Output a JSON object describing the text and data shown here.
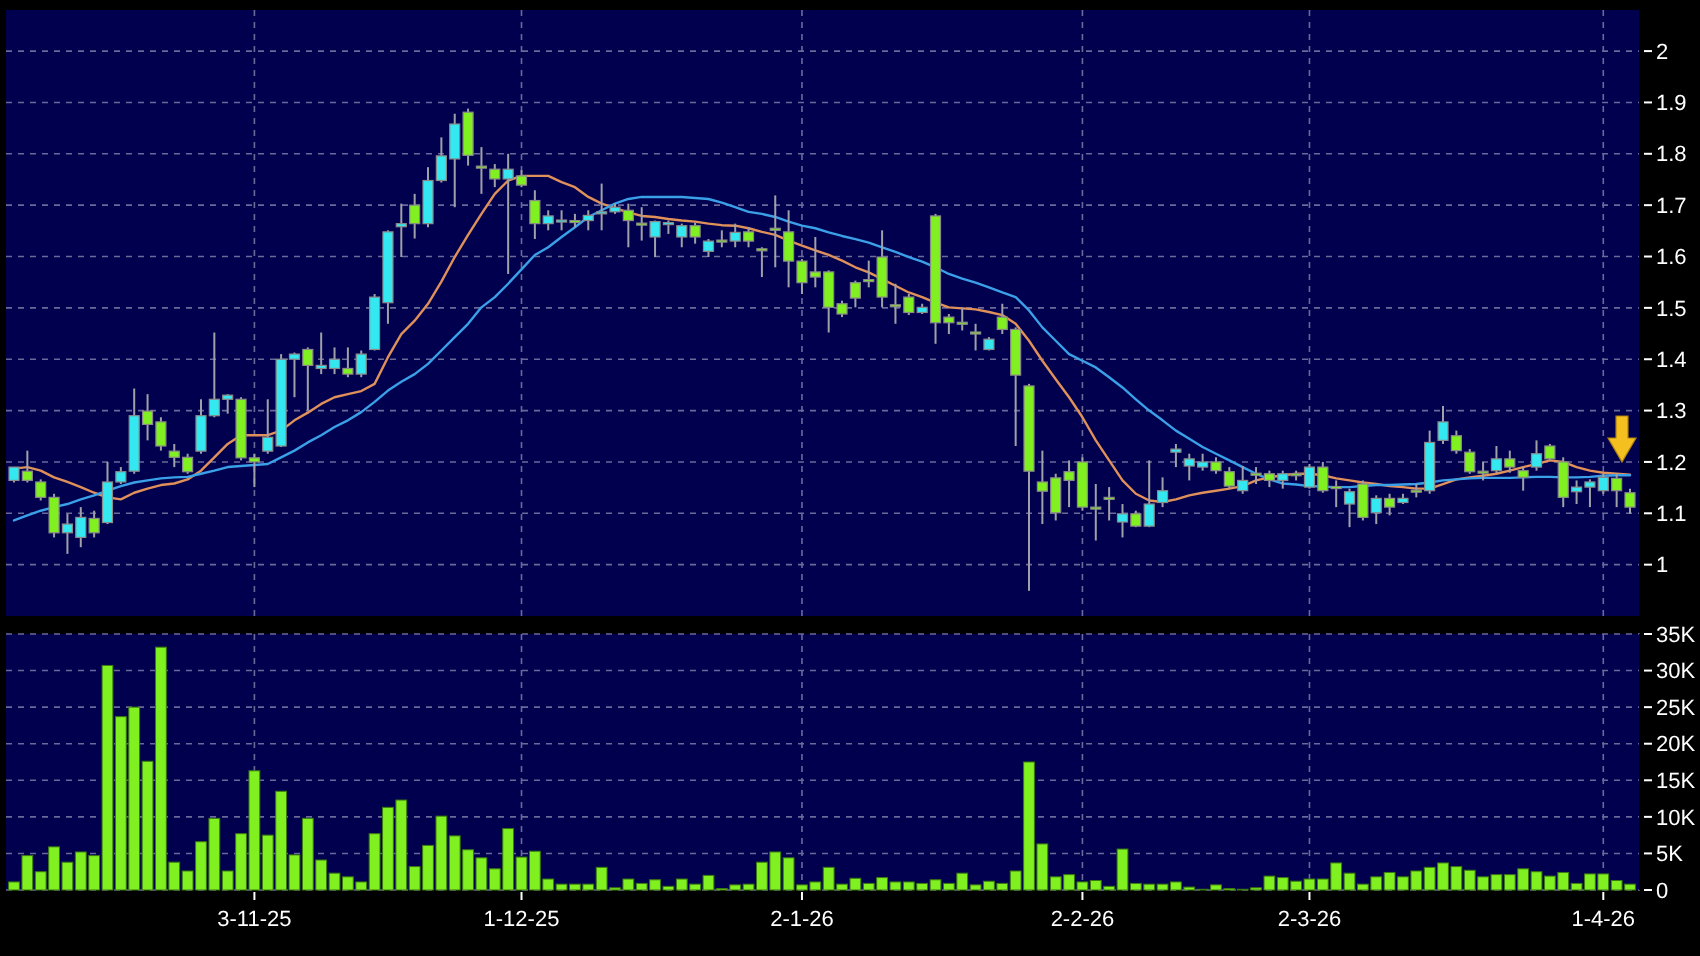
{
  "chart_data": [
    {
      "type": "candlestick",
      "categories": [
        null,
        null,
        null,
        null,
        null,
        null,
        null,
        null,
        null,
        null,
        null,
        null,
        null,
        null,
        null,
        null,
        null,
        null,
        null,
        null,
        null,
        null,
        null,
        null,
        null,
        null,
        null,
        null,
        null,
        null,
        null,
        null,
        null,
        null,
        null,
        null,
        null,
        null,
        null,
        null,
        null,
        null,
        null,
        null,
        null,
        null,
        null,
        null,
        null,
        null,
        null,
        null,
        null,
        null,
        null,
        null,
        null,
        null,
        null,
        null,
        null,
        null,
        null,
        null,
        null,
        null,
        null,
        null,
        null,
        null,
        null,
        null,
        null,
        null,
        null,
        null,
        null,
        null,
        null,
        null,
        null,
        null,
        null,
        null,
        null,
        null,
        null,
        null,
        null,
        null,
        null,
        null,
        null,
        null,
        null,
        null,
        null,
        null,
        null,
        null,
        null,
        null,
        null,
        null,
        null,
        null,
        null,
        null,
        null,
        null,
        null,
        null,
        null,
        null,
        null,
        null,
        null,
        null,
        null,
        null,
        null,
        null
      ],
      "ohlc": [
        [
          1.164,
          1.19,
          1.16,
          1.19
        ],
        [
          1.182,
          1.222,
          1.16,
          1.164
        ],
        [
          1.161,
          1.166,
          1.125,
          1.131
        ],
        [
          1.131,
          1.138,
          1.053,
          1.062
        ],
        [
          1.062,
          1.099,
          1.021,
          1.079
        ],
        [
          1.053,
          1.112,
          1.034,
          1.092
        ],
        [
          1.09,
          1.105,
          1.053,
          1.062
        ],
        [
          1.082,
          1.2,
          1.079,
          1.161
        ],
        [
          1.161,
          1.19,
          1.157,
          1.181
        ],
        [
          1.182,
          1.343,
          1.177,
          1.29
        ],
        [
          1.299,
          1.332,
          1.242,
          1.273
        ],
        [
          1.278,
          1.287,
          1.222,
          1.231
        ],
        [
          1.221,
          1.235,
          1.19,
          1.209
        ],
        [
          1.209,
          1.216,
          1.177,
          1.181
        ],
        [
          1.221,
          1.322,
          1.216,
          1.29
        ],
        [
          1.29,
          1.452,
          1.287,
          1.322
        ],
        [
          1.322,
          1.332,
          1.294,
          1.33
        ],
        [
          1.322,
          1.326,
          1.203,
          1.208
        ],
        [
          1.208,
          1.216,
          1.151,
          1.2
        ],
        [
          1.221,
          1.322,
          1.216,
          1.248
        ],
        [
          1.231,
          1.41,
          1.229,
          1.4
        ],
        [
          1.4,
          1.413,
          1.326,
          1.41
        ],
        [
          1.419,
          1.423,
          1.3,
          1.388
        ],
        [
          1.382,
          1.452,
          1.371,
          1.388
        ],
        [
          1.382,
          1.423,
          1.371,
          1.4
        ],
        [
          1.382,
          1.423,
          1.365,
          1.371
        ],
        [
          1.371,
          1.417,
          1.365,
          1.41
        ],
        [
          1.419,
          1.527,
          1.417,
          1.521
        ],
        [
          1.51,
          1.651,
          1.469,
          1.648
        ],
        [
          1.658,
          1.703,
          1.599,
          1.664
        ],
        [
          1.7,
          1.722,
          1.635,
          1.664
        ],
        [
          1.664,
          1.774,
          1.657,
          1.748
        ],
        [
          1.748,
          1.832,
          1.744,
          1.796
        ],
        [
          1.79,
          1.878,
          1.696,
          1.858
        ],
        [
          1.881,
          1.888,
          1.777,
          1.797
        ],
        [
          1.776,
          1.813,
          1.722,
          1.774
        ],
        [
          1.77,
          1.78,
          1.735,
          1.751
        ],
        [
          1.751,
          1.8,
          1.566,
          1.77
        ],
        [
          1.757,
          1.768,
          1.735,
          1.739
        ],
        [
          1.709,
          1.729,
          1.634,
          1.664
        ],
        [
          1.664,
          1.69,
          1.651,
          1.679
        ],
        [
          1.67,
          1.69,
          1.651,
          1.671
        ],
        [
          1.67,
          1.683,
          1.657,
          1.668
        ],
        [
          1.67,
          1.69,
          1.651,
          1.68
        ],
        [
          1.683,
          1.742,
          1.651,
          1.687
        ],
        [
          1.687,
          1.703,
          1.683,
          1.696
        ],
        [
          1.69,
          1.703,
          1.618,
          1.67
        ],
        [
          1.665,
          1.696,
          1.631,
          1.664
        ],
        [
          1.638,
          1.67,
          1.599,
          1.668
        ],
        [
          1.665,
          1.67,
          1.644,
          1.666
        ],
        [
          1.638,
          1.664,
          1.618,
          1.66
        ],
        [
          1.66,
          1.666,
          1.625,
          1.638
        ],
        [
          1.61,
          1.634,
          1.599,
          1.63
        ],
        [
          1.632,
          1.651,
          1.618,
          1.631
        ],
        [
          1.63,
          1.664,
          1.618,
          1.647
        ],
        [
          1.648,
          1.657,
          1.618,
          1.63
        ],
        [
          1.615,
          1.618,
          1.56,
          1.614
        ],
        [
          1.655,
          1.719,
          1.579,
          1.653
        ],
        [
          1.648,
          1.69,
          1.54,
          1.591
        ],
        [
          1.591,
          1.595,
          1.527,
          1.549
        ],
        [
          1.57,
          1.638,
          1.54,
          1.56
        ],
        [
          1.57,
          1.573,
          1.452,
          1.501
        ],
        [
          1.508,
          1.514,
          1.482,
          1.488
        ],
        [
          1.549,
          1.553,
          1.501,
          1.519
        ],
        [
          1.555,
          1.592,
          1.54,
          1.553
        ],
        [
          1.599,
          1.651,
          1.501,
          1.521
        ],
        [
          1.506,
          1.547,
          1.469,
          1.505
        ],
        [
          1.521,
          1.527,
          1.486,
          1.491
        ],
        [
          1.491,
          1.508,
          1.488,
          1.501
        ],
        [
          1.679,
          1.683,
          1.43,
          1.471
        ],
        [
          1.482,
          1.488,
          1.449,
          1.471
        ],
        [
          1.472,
          1.501,
          1.456,
          1.471
        ],
        [
          1.453,
          1.469,
          1.417,
          1.452
        ],
        [
          1.419,
          1.443,
          1.417,
          1.439
        ],
        [
          1.482,
          1.508,
          1.449,
          1.458
        ],
        [
          1.458,
          1.462,
          1.231,
          1.369
        ],
        [
          1.348,
          1.352,
          0.949,
          1.182
        ],
        [
          1.161,
          1.222,
          1.079,
          1.143
        ],
        [
          1.169,
          1.177,
          1.086,
          1.101
        ],
        [
          1.181,
          1.203,
          1.112,
          1.164
        ],
        [
          1.2,
          1.209,
          1.105,
          1.112
        ],
        [
          1.112,
          1.157,
          1.047,
          1.11
        ],
        [
          1.131,
          1.151,
          1.086,
          1.13
        ],
        [
          1.083,
          1.118,
          1.053,
          1.099
        ],
        [
          1.099,
          1.105,
          1.073,
          1.075
        ],
        [
          1.075,
          1.203,
          1.073,
          1.118
        ],
        [
          1.121,
          1.17,
          1.112,
          1.144
        ],
        [
          1.219,
          1.235,
          1.19,
          1.225
        ],
        [
          1.192,
          1.216,
          1.164,
          1.206
        ],
        [
          1.19,
          1.216,
          1.183,
          1.2
        ],
        [
          1.2,
          1.209,
          1.177,
          1.183
        ],
        [
          1.181,
          1.19,
          1.148,
          1.153
        ],
        [
          1.144,
          1.192,
          1.138,
          1.164
        ],
        [
          1.178,
          1.19,
          1.157,
          1.177
        ],
        [
          1.177,
          1.183,
          1.151,
          1.164
        ],
        [
          1.164,
          1.183,
          1.148,
          1.177
        ],
        [
          1.177,
          1.183,
          1.164,
          1.176
        ],
        [
          1.151,
          1.196,
          1.148,
          1.19
        ],
        [
          1.19,
          1.2,
          1.14,
          1.144
        ],
        [
          1.152,
          1.164,
          1.112,
          1.151
        ],
        [
          1.118,
          1.148,
          1.073,
          1.142
        ],
        [
          1.157,
          1.164,
          1.086,
          1.092
        ],
        [
          1.101,
          1.135,
          1.079,
          1.129
        ],
        [
          1.129,
          1.138,
          1.096,
          1.112
        ],
        [
          1.121,
          1.138,
          1.118,
          1.129
        ],
        [
          1.145,
          1.157,
          1.131,
          1.144
        ],
        [
          1.144,
          1.261,
          1.138,
          1.238
        ],
        [
          1.242,
          1.309,
          1.235,
          1.278
        ],
        [
          1.251,
          1.261,
          1.216,
          1.222
        ],
        [
          1.219,
          1.225,
          1.177,
          1.181
        ],
        [
          1.182,
          1.2,
          1.164,
          1.181
        ],
        [
          1.183,
          1.231,
          1.177,
          1.206
        ],
        [
          1.206,
          1.222,
          1.179,
          1.19
        ],
        [
          1.183,
          1.19,
          1.144,
          1.17
        ],
        [
          1.19,
          1.242,
          1.183,
          1.216
        ],
        [
          1.231,
          1.235,
          1.203,
          1.206
        ],
        [
          1.2,
          1.209,
          1.112,
          1.131
        ],
        [
          1.142,
          1.164,
          1.118,
          1.151
        ],
        [
          1.151,
          1.166,
          1.112,
          1.161
        ],
        [
          1.144,
          1.177,
          1.138,
          1.17
        ],
        [
          1.168,
          1.177,
          1.112,
          1.144
        ],
        [
          1.14,
          1.148,
          1.099,
          1.112
        ]
      ],
      "colors": [
        "#33e8f0",
        "#80f020",
        "#80f020",
        "#80f020",
        "#33e8f0",
        "#33e8f0",
        "#80f020",
        "#33e8f0",
        "#33e8f0",
        "#33e8f0",
        "#80f020",
        "#80f020",
        "#80f020",
        "#80f020",
        "#33e8f0",
        "#33e8f0",
        "#33e8f0",
        "#80f020",
        "#80f020",
        "#33e8f0",
        "#33e8f0",
        "#33e8f0",
        "#80f020",
        "#33e8f0",
        "#33e8f0",
        "#80f020",
        "#33e8f0",
        "#33e8f0",
        "#33e8f0",
        "#33e8f0",
        "#80f020",
        "#33e8f0",
        "#33e8f0",
        "#33e8f0",
        "#80f020",
        "#80f020",
        "#80f020",
        "#33e8f0",
        "#80f020",
        "#80f020",
        "#33e8f0",
        "#33e8f0",
        "#80f020",
        "#33e8f0",
        "#33e8f0",
        "#33e8f0",
        "#80f020",
        "#80f020",
        "#33e8f0",
        "#33e8f0",
        "#33e8f0",
        "#80f020",
        "#33e8f0",
        "#80f020",
        "#33e8f0",
        "#80f020",
        "#80f020",
        "#80f020",
        "#80f020",
        "#80f020",
        "#80f020",
        "#80f020",
        "#80f020",
        "#80f020",
        "#80f020",
        "#80f020",
        "#80f020",
        "#80f020",
        "#33e8f0",
        "#80f020",
        "#80f020",
        "#80f020",
        "#80f020",
        "#33e8f0",
        "#80f020",
        "#80f020",
        "#80f020",
        "#80f020",
        "#80f020",
        "#80f020",
        "#80f020",
        "#80f020",
        "#80f020",
        "#33e8f0",
        "#80f020",
        "#33e8f0",
        "#33e8f0",
        "#33e8f0",
        "#33e8f0",
        "#33e8f0",
        "#80f020",
        "#80f020",
        "#33e8f0",
        "#80f020",
        "#80f020",
        "#33e8f0",
        "#80f020",
        "#33e8f0",
        "#80f020",
        "#80f020",
        "#33e8f0",
        "#80f020",
        "#33e8f0",
        "#80f020",
        "#33e8f0",
        "#80f020",
        "#33e8f0",
        "#33e8f0",
        "#80f020",
        "#80f020",
        "#80f020",
        "#33e8f0",
        "#80f020",
        "#80f020",
        "#33e8f0",
        "#80f020",
        "#80f020",
        "#33e8f0",
        "#33e8f0",
        "#33e8f0",
        "#80f020",
        "#80f020"
      ],
      "series": [
        {
          "type": "line",
          "color": "#e0905a",
          "values": [
            1.187,
            1.19,
            1.183,
            1.17,
            1.161,
            1.151,
            1.14,
            1.131,
            1.127,
            1.14,
            1.148,
            1.155,
            1.158,
            1.166,
            1.183,
            1.209,
            1.235,
            1.252,
            1.252,
            1.252,
            1.261,
            1.281,
            1.296,
            1.313,
            1.326,
            1.332,
            1.338,
            1.352,
            1.404,
            1.449,
            1.475,
            1.508,
            1.551,
            1.599,
            1.642,
            1.683,
            1.722,
            1.748,
            1.757,
            1.757,
            1.757,
            1.745,
            1.735,
            1.716,
            1.703,
            1.694,
            1.686,
            1.679,
            1.677,
            1.673,
            1.67,
            1.668,
            1.664,
            1.661,
            1.66,
            1.655,
            1.648,
            1.642,
            1.631,
            1.621,
            1.612,
            1.603,
            1.592,
            1.579,
            1.569,
            1.556,
            1.543,
            1.53,
            1.521,
            1.51,
            1.501,
            1.499,
            1.497,
            1.492,
            1.486,
            1.469,
            1.436,
            1.397,
            1.361,
            1.326,
            1.287,
            1.242,
            1.203,
            1.164,
            1.138,
            1.125,
            1.122,
            1.127,
            1.135,
            1.14,
            1.144,
            1.148,
            1.153,
            1.164,
            1.17,
            1.174,
            1.177,
            1.177,
            1.174,
            1.168,
            1.164,
            1.16,
            1.157,
            1.153,
            1.151,
            1.148,
            1.148,
            1.157,
            1.166,
            1.17,
            1.173,
            1.177,
            1.183,
            1.19,
            1.196,
            1.203,
            1.2,
            1.19,
            1.183,
            1.179,
            1.177,
            1.175
          ]
        },
        {
          "type": "line",
          "color": "#3aa0e8",
          "values": [
            1.086,
            1.096,
            1.105,
            1.112,
            1.118,
            1.127,
            1.135,
            1.144,
            1.153,
            1.16,
            1.164,
            1.168,
            1.17,
            1.171,
            1.177,
            1.183,
            1.19,
            1.192,
            1.194,
            1.196,
            1.209,
            1.222,
            1.238,
            1.252,
            1.268,
            1.281,
            1.297,
            1.317,
            1.339,
            1.356,
            1.371,
            1.391,
            1.417,
            1.443,
            1.469,
            1.501,
            1.521,
            1.547,
            1.575,
            1.603,
            1.618,
            1.638,
            1.657,
            1.677,
            1.69,
            1.703,
            1.712,
            1.716,
            1.716,
            1.716,
            1.716,
            1.714,
            1.712,
            1.705,
            1.696,
            1.687,
            1.683,
            1.677,
            1.668,
            1.66,
            1.655,
            1.647,
            1.64,
            1.634,
            1.627,
            1.618,
            1.609,
            1.599,
            1.59,
            1.579,
            1.566,
            1.557,
            1.549,
            1.54,
            1.53,
            1.521,
            1.495,
            1.462,
            1.436,
            1.41,
            1.397,
            1.384,
            1.365,
            1.345,
            1.322,
            1.3,
            1.281,
            1.261,
            1.245,
            1.229,
            1.216,
            1.203,
            1.19,
            1.177,
            1.166,
            1.158,
            1.156,
            1.153,
            1.152,
            1.151,
            1.151,
            1.153,
            1.155,
            1.155,
            1.156,
            1.157,
            1.16,
            1.164,
            1.166,
            1.168,
            1.169,
            1.169,
            1.169,
            1.17,
            1.171,
            1.171,
            1.17,
            1.17,
            1.171,
            1.173,
            1.174,
            1.174
          ]
        }
      ],
      "ylim": [
        0.9,
        2.08
      ],
      "yticks": [
        1,
        1.1,
        1.2,
        1.3,
        1.4,
        1.5,
        1.6,
        1.7,
        1.8,
        1.9,
        2
      ],
      "grid": true,
      "tick_labels": "y"
    },
    {
      "type": "bar",
      "categories": [
        null,
        null,
        null,
        null,
        null,
        null,
        null,
        null,
        null,
        null,
        null,
        null,
        null,
        null,
        null,
        null,
        null,
        null,
        "3-11-25",
        null,
        null,
        null,
        null,
        null,
        null,
        null,
        null,
        null,
        null,
        null,
        null,
        null,
        null,
        null,
        null,
        null,
        null,
        null,
        "1-12-25",
        null,
        null,
        null,
        null,
        null,
        null,
        null,
        null,
        null,
        null,
        null,
        null,
        null,
        null,
        null,
        null,
        null,
        null,
        null,
        null,
        "2-1-26",
        null,
        null,
        null,
        null,
        null,
        null,
        null,
        null,
        null,
        null,
        null,
        null,
        null,
        null,
        null,
        null,
        null,
        null,
        null,
        null,
        "2-2-26",
        null,
        null,
        null,
        null,
        null,
        null,
        null,
        null,
        null,
        null,
        null,
        null,
        null,
        null,
        null,
        null,
        "2-3-26",
        null,
        null,
        null,
        null,
        null,
        null,
        null,
        null,
        null,
        null,
        null,
        null,
        null,
        null,
        null,
        null,
        null,
        null,
        null,
        null,
        null,
        "1-4-26",
        null,
        null
      ],
      "values": [
        1100,
        4700,
        2500,
        5900,
        3800,
        5200,
        4700,
        30700,
        23700,
        25000,
        17600,
        33200,
        3800,
        2600,
        6600,
        9800,
        2600,
        7700,
        16300,
        7500,
        13500,
        4800,
        9800,
        4100,
        2300,
        1800,
        1100,
        7700,
        11300,
        12300,
        3200,
        6100,
        10100,
        7400,
        5500,
        4400,
        2900,
        8400,
        4500,
        5300,
        1500,
        800,
        800,
        800,
        3100,
        300,
        1500,
        900,
        1400,
        500,
        1500,
        800,
        2000,
        200,
        700,
        800,
        3800,
        5200,
        4400,
        700,
        1100,
        3100,
        800,
        1600,
        900,
        1700,
        1100,
        1100,
        900,
        1400,
        900,
        2300,
        700,
        1200,
        900,
        2600,
        17500,
        6300,
        1800,
        2100,
        1100,
        1300,
        500,
        5600,
        900,
        800,
        800,
        1100,
        400,
        100,
        700,
        200,
        100,
        300,
        1900,
        1700,
        1200,
        1500,
        1500,
        3700,
        2300,
        800,
        1800,
        2400,
        1800,
        2600,
        3100,
        3700,
        3200,
        2700,
        1800,
        2100,
        2100,
        2900,
        2500,
        1900,
        2400,
        900,
        2200,
        2200,
        1300,
        800
      ],
      "color": "#80f020",
      "ylim": [
        0,
        35000
      ],
      "yticks": [
        {
          "value": 0,
          "label": "0"
        },
        {
          "value": 5000,
          "label": "5K"
        },
        {
          "value": 10000,
          "label": "10K"
        },
        {
          "value": 15000,
          "label": "15K"
        },
        {
          "value": 20000,
          "label": "20K"
        },
        {
          "value": 25000,
          "label": "25K"
        },
        {
          "value": 30000,
          "label": "30K"
        },
        {
          "value": 35000,
          "label": "35K"
        }
      ],
      "grid": true
    }
  ]
}
